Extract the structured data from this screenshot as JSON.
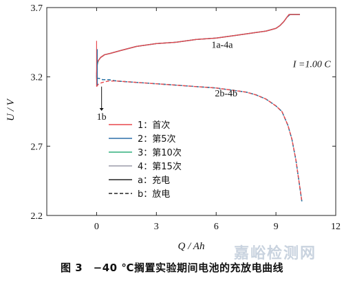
{
  "chart_data": {
    "type": "line",
    "xlabel": "Q / Ah",
    "ylabel": "U / V",
    "xlim": [
      -2.5,
      12
    ],
    "ylim": [
      2.2,
      3.7
    ],
    "xticks": [
      0,
      3,
      6,
      9,
      12
    ],
    "yticks": [
      2.2,
      2.7,
      3.2,
      3.7
    ],
    "xtick_labels": [
      "0",
      "3",
      "6",
      "9",
      "12"
    ],
    "ytick_labels": [
      "2.2",
      "2.7",
      "3.2",
      "3.7"
    ],
    "grid": false,
    "legend_position": "lower-left",
    "legend": [
      {
        "label": "1：首次",
        "color": "#e8474c",
        "style": "solid"
      },
      {
        "label": "2：第5次",
        "color": "#2a6fa8",
        "style": "solid"
      },
      {
        "label": "3：第10次",
        "color": "#2fae7c",
        "style": "solid"
      },
      {
        "label": "4：第15次",
        "color": "#9a9aa8",
        "style": "solid"
      },
      {
        "label": "a：充电",
        "color": "#222222",
        "style": "solid"
      },
      {
        "label": "b：放电",
        "color": "#222222",
        "style": "dashed"
      }
    ],
    "annotations": [
      {
        "text": "1a-4a",
        "x": 6.3,
        "y": 3.41
      },
      {
        "text": "I =1.00 C",
        "x": 10.8,
        "y": 3.27
      },
      {
        "text": "2b-4b",
        "x": 6.5,
        "y": 3.06
      },
      {
        "text": "1b",
        "x": 0.25,
        "y": 2.89
      }
    ],
    "series": [
      {
        "name": "1：首次",
        "kind": "charge",
        "color": "#e8474c",
        "dashed": false,
        "x": [
          0,
          0.02,
          0.05,
          0.1,
          0.2,
          0.4,
          0.7,
          1.2,
          2,
          3,
          4,
          5,
          6,
          7,
          8,
          8.5,
          9,
          9.2,
          9.4,
          9.55,
          9.65,
          10.2
        ],
        "y": [
          3.22,
          3.29,
          3.31,
          3.32,
          3.34,
          3.36,
          3.37,
          3.39,
          3.42,
          3.44,
          3.45,
          3.47,
          3.48,
          3.5,
          3.52,
          3.53,
          3.55,
          3.57,
          3.6,
          3.63,
          3.65,
          3.65
        ]
      },
      {
        "name": "2：第5次",
        "kind": "charge",
        "color": "#2a6fa8",
        "dashed": false,
        "x": [
          0,
          0.02,
          0.05,
          0.1,
          0.2,
          0.4,
          0.7,
          1.2,
          2,
          3,
          4,
          5,
          6,
          7,
          8,
          8.5,
          9,
          9.2,
          9.4,
          9.55,
          9.7,
          10.2
        ],
        "y": [
          3.2,
          3.28,
          3.31,
          3.32,
          3.34,
          3.36,
          3.37,
          3.39,
          3.42,
          3.44,
          3.45,
          3.47,
          3.48,
          3.5,
          3.52,
          3.53,
          3.55,
          3.57,
          3.6,
          3.63,
          3.65,
          3.65
        ]
      },
      {
        "name": "3：第10次",
        "kind": "charge",
        "color": "#2fae7c",
        "dashed": false,
        "x": [
          0,
          0.02,
          0.05,
          0.1,
          0.2,
          0.4,
          0.7,
          1.2,
          2,
          3,
          4,
          5,
          6,
          7,
          8,
          8.5,
          9,
          9.2,
          9.4,
          9.55,
          9.7,
          10.2
        ],
        "y": [
          3.19,
          3.28,
          3.3,
          3.32,
          3.34,
          3.36,
          3.37,
          3.39,
          3.42,
          3.44,
          3.45,
          3.47,
          3.48,
          3.5,
          3.52,
          3.53,
          3.55,
          3.57,
          3.6,
          3.63,
          3.65,
          3.65
        ]
      },
      {
        "name": "4：第15次",
        "kind": "charge",
        "color": "#9a9aa8",
        "dashed": false,
        "x": [
          0,
          0.02,
          0.05,
          0.1,
          0.2,
          0.4,
          0.7,
          1.2,
          2,
          3,
          4,
          5,
          6,
          7,
          8,
          8.5,
          9,
          9.2,
          9.4,
          9.55,
          9.7,
          10.2
        ],
        "y": [
          3.18,
          3.27,
          3.3,
          3.32,
          3.34,
          3.36,
          3.37,
          3.39,
          3.42,
          3.44,
          3.45,
          3.47,
          3.48,
          3.5,
          3.52,
          3.53,
          3.55,
          3.57,
          3.6,
          3.63,
          3.65,
          3.65
        ]
      },
      {
        "name": "1：首次",
        "kind": "discharge",
        "color": "#e8474c",
        "dashed": true,
        "x": [
          0,
          0.1,
          0.3,
          0.6,
          1,
          2,
          3,
          4,
          5,
          6,
          7,
          7.5,
          8,
          8.5,
          9,
          9.3,
          9.6,
          9.8,
          10,
          10.1,
          10.2,
          10.3
        ],
        "y": [
          3.13,
          3.15,
          3.16,
          3.17,
          3.17,
          3.16,
          3.15,
          3.14,
          3.13,
          3.12,
          3.1,
          3.09,
          3.07,
          3.04,
          2.99,
          2.95,
          2.85,
          2.75,
          2.6,
          2.5,
          2.4,
          2.3
        ]
      },
      {
        "name": "2：第5次",
        "kind": "discharge",
        "color": "#2a6fa8",
        "dashed": true,
        "x": [
          0,
          0.1,
          0.3,
          0.6,
          1,
          2,
          3,
          4,
          5,
          6,
          7,
          7.5,
          8,
          8.5,
          9,
          9.3,
          9.6,
          9.8,
          10,
          10.1,
          10.2,
          10.3
        ],
        "y": [
          3.19,
          3.19,
          3.18,
          3.18,
          3.17,
          3.16,
          3.15,
          3.14,
          3.13,
          3.12,
          3.1,
          3.09,
          3.07,
          3.04,
          2.99,
          2.95,
          2.85,
          2.75,
          2.6,
          2.5,
          2.4,
          2.3
        ]
      },
      {
        "name": "3：第10次",
        "kind": "discharge",
        "color": "#2fae7c",
        "dashed": true,
        "x": [
          0,
          0.1,
          0.3,
          0.6,
          1,
          2,
          3,
          4,
          5,
          6,
          7,
          7.5,
          8,
          8.5,
          9,
          9.3,
          9.6,
          9.8,
          10,
          10.1,
          10.2,
          10.3
        ],
        "y": [
          3.19,
          3.19,
          3.18,
          3.18,
          3.17,
          3.16,
          3.15,
          3.14,
          3.13,
          3.12,
          3.1,
          3.09,
          3.07,
          3.04,
          2.99,
          2.95,
          2.85,
          2.75,
          2.6,
          2.5,
          2.4,
          2.3
        ]
      },
      {
        "name": "4：第15次",
        "kind": "discharge",
        "color": "#9a9aa8",
        "dashed": true,
        "x": [
          0,
          0.1,
          0.3,
          0.6,
          1,
          2,
          3,
          4,
          5,
          6,
          7,
          7.5,
          8,
          8.5,
          9,
          9.3,
          9.6,
          9.8,
          10,
          10.1,
          10.2,
          10.3
        ],
        "y": [
          3.19,
          3.19,
          3.18,
          3.18,
          3.17,
          3.16,
          3.15,
          3.14,
          3.13,
          3.12,
          3.1,
          3.09,
          3.07,
          3.04,
          2.99,
          2.95,
          2.85,
          2.75,
          2.6,
          2.5,
          2.4,
          2.3
        ]
      }
    ]
  },
  "caption": "图 3　−40 ℃搁置实验期间电池的充放电曲线",
  "watermark": "嘉峪检测网"
}
